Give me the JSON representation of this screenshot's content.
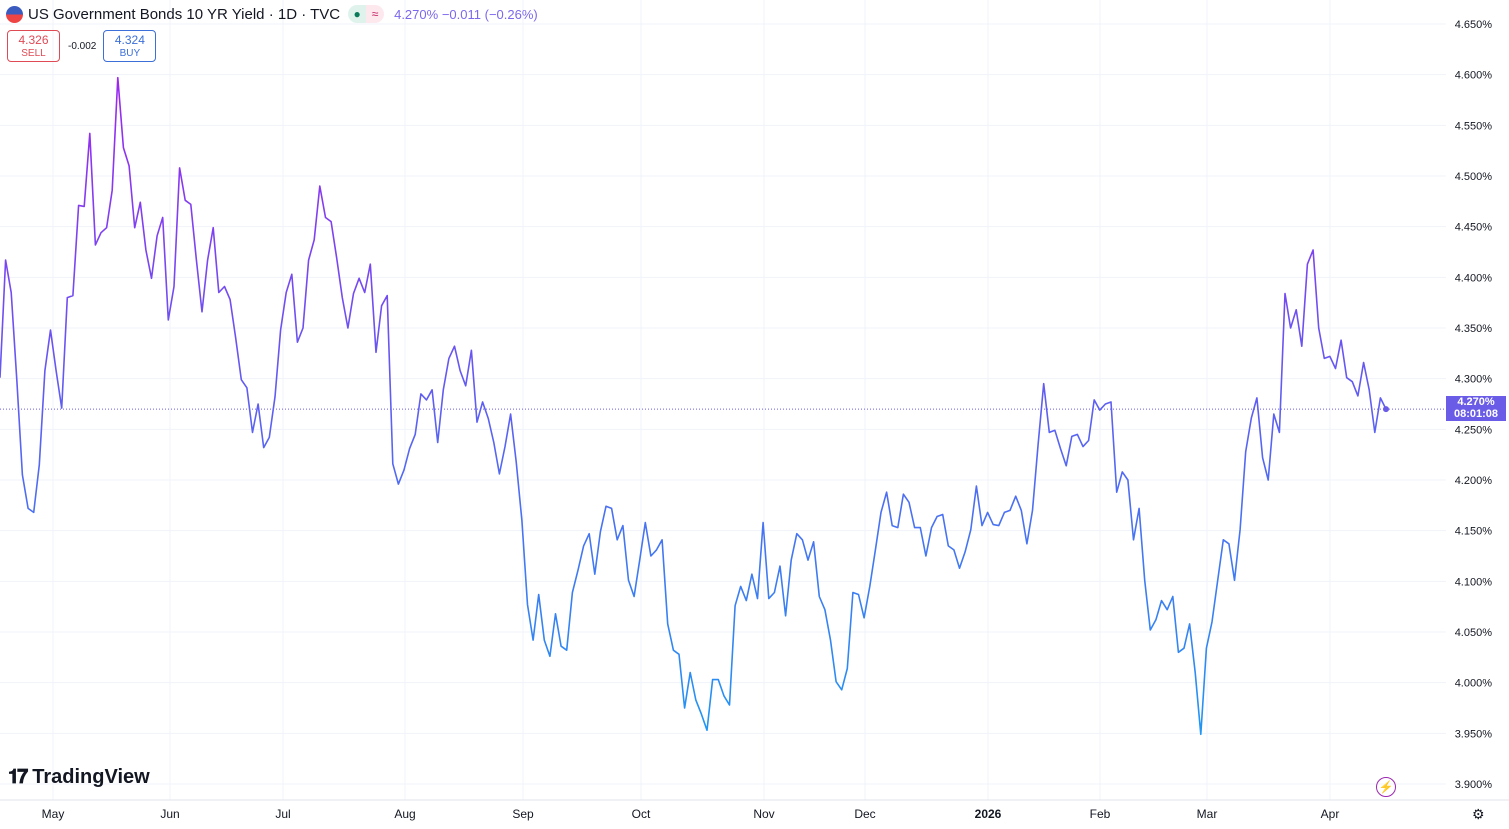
{
  "header": {
    "title": "US Government Bonds 10 YR Yield · 1D · TVC",
    "market_status_icon": "dot-icon",
    "delayed_icon": "approx-icon",
    "last": "4.270%",
    "change": "−0.011",
    "change_pct": "(−0.26%)"
  },
  "trade": {
    "sell_price": "4.326",
    "sell_label": "SELL",
    "spread": "-0.002",
    "buy_price": "4.324",
    "buy_label": "BUY"
  },
  "last_label": {
    "value": "4.270%",
    "countdown": "08:01:08"
  },
  "logo": "TradingView",
  "colors": {
    "line_top": "#9c27f0",
    "line_bottom": "#2196f3",
    "last_label": "#6a5ce6",
    "sell": "#e04a55",
    "buy": "#3c6fd8"
  },
  "chart_data": {
    "type": "line",
    "title": "US Government Bonds 10 YR Yield · 1D · TVC",
    "xlabel": "",
    "ylabel": "",
    "ylim": [
      3.9,
      4.65
    ],
    "grid": true,
    "y_ticks": [
      "4.650%",
      "4.600%",
      "4.550%",
      "4.500%",
      "4.450%",
      "4.400%",
      "4.350%",
      "4.300%",
      "4.250%",
      "4.200%",
      "4.150%",
      "4.100%",
      "4.050%",
      "4.000%",
      "3.950%",
      "3.900%"
    ],
    "x_ticks": [
      "May",
      "Jun",
      "Jul",
      "Aug",
      "Sep",
      "Oct",
      "Nov",
      "Dec",
      "2026",
      "Feb",
      "Mar",
      "Apr"
    ],
    "values": [
      4.301,
      4.417,
      4.385,
      4.299,
      4.205,
      4.172,
      4.168,
      4.215,
      4.308,
      4.348,
      4.308,
      4.271,
      4.38,
      4.382,
      4.471,
      4.47,
      4.542,
      4.432,
      4.444,
      4.449,
      4.486,
      4.597,
      4.528,
      4.51,
      4.449,
      4.474,
      4.427,
      4.399,
      4.441,
      4.459,
      4.358,
      4.391,
      4.508,
      4.476,
      4.472,
      4.417,
      4.366,
      4.417,
      4.449,
      4.385,
      4.391,
      4.378,
      4.34,
      4.299,
      4.291,
      4.247,
      4.275,
      4.232,
      4.242,
      4.282,
      4.348,
      4.385,
      4.403,
      4.336,
      4.35,
      4.417,
      4.437,
      4.49,
      4.459,
      4.455,
      4.419,
      4.38,
      4.35,
      4.384,
      4.399,
      4.385,
      4.413,
      4.326,
      4.372,
      4.382,
      4.216,
      4.196,
      4.21,
      4.231,
      4.245,
      4.285,
      4.279,
      4.289,
      4.237,
      4.289,
      4.32,
      4.332,
      4.308,
      4.293,
      4.328,
      4.257,
      4.277,
      4.261,
      4.237,
      4.206,
      4.233,
      4.265,
      4.218,
      4.16,
      4.077,
      4.042,
      4.087,
      4.042,
      4.026,
      4.068,
      4.036,
      4.032,
      4.089,
      4.111,
      4.135,
      4.147,
      4.107,
      4.149,
      4.174,
      4.172,
      4.141,
      4.155,
      4.101,
      4.085,
      4.121,
      4.158,
      4.125,
      4.131,
      4.141,
      4.058,
      4.032,
      4.028,
      3.975,
      4.01,
      3.983,
      3.969,
      3.953,
      4.003,
      4.003,
      3.987,
      3.978,
      4.076,
      4.095,
      4.081,
      4.107,
      4.083,
      4.158,
      4.083,
      4.089,
      4.115,
      4.066,
      4.121,
      4.147,
      4.141,
      4.121,
      4.139,
      4.085,
      4.072,
      4.042,
      4.001,
      3.993,
      4.014,
      4.089,
      4.087,
      4.064,
      4.095,
      4.131,
      4.168,
      4.188,
      4.155,
      4.153,
      4.186,
      4.178,
      4.153,
      4.153,
      4.125,
      4.153,
      4.164,
      4.166,
      4.135,
      4.131,
      4.113,
      4.129,
      4.151,
      4.194,
      4.155,
      4.168,
      4.156,
      4.155,
      4.168,
      4.17,
      4.184,
      4.17,
      4.137,
      4.17,
      4.235,
      4.295,
      4.247,
      4.249,
      4.231,
      4.214,
      4.243,
      4.245,
      4.233,
      4.239,
      4.279,
      4.269,
      4.275,
      4.277,
      4.188,
      4.208,
      4.2,
      4.141,
      4.172,
      4.101,
      4.052,
      4.062,
      4.081,
      4.072,
      4.085,
      4.03,
      4.034,
      4.058,
      4.01,
      3.949,
      4.034,
      4.06,
      4.101,
      4.141,
      4.137,
      4.101,
      4.151,
      4.228,
      4.261,
      4.281,
      4.222,
      4.2,
      4.265,
      4.247,
      4.384,
      4.35,
      4.368,
      4.332,
      4.413,
      4.427,
      4.35,
      4.32,
      4.322,
      4.31,
      4.338,
      4.301,
      4.297,
      4.283,
      4.316,
      4.289,
      4.247,
      4.281,
      4.27
    ],
    "last_value": 4.27
  }
}
